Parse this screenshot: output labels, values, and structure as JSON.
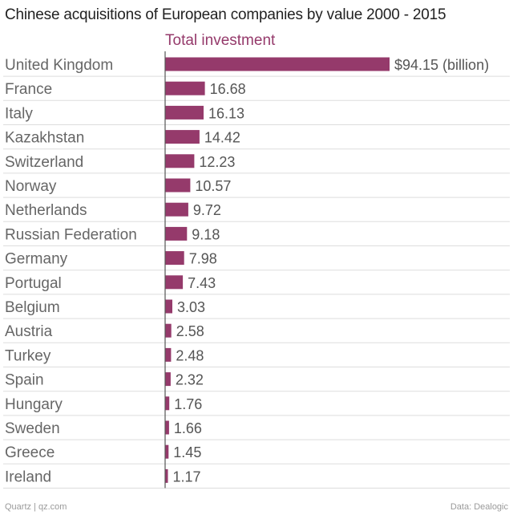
{
  "chart_data": {
    "type": "bar",
    "orientation": "horizontal",
    "title": "Chinese acquisitions of European companies by value 2000 - 2015",
    "series_name": "Total investment",
    "value_unit_suffix": " (billion)",
    "value_prefix": "$",
    "categories": [
      "United Kingdom",
      "France",
      "Italy",
      "Kazakhstan",
      "Switzerland",
      "Norway",
      "Netherlands",
      "Russian Federation",
      "Germany",
      "Portugal",
      "Belgium",
      "Austria",
      "Turkey",
      "Spain",
      "Hungary",
      "Sweden",
      "Greece",
      "Ireland"
    ],
    "values": [
      94.15,
      16.68,
      16.13,
      14.42,
      12.23,
      10.57,
      9.72,
      9.18,
      7.98,
      7.43,
      3.03,
      2.58,
      2.48,
      2.32,
      1.76,
      1.66,
      1.45,
      1.17
    ],
    "value_labels": [
      "$94.15 (billion)",
      "16.68",
      "16.13",
      "14.42",
      "12.23",
      "10.57",
      "9.72",
      "9.18",
      "7.98",
      "7.43",
      "3.03",
      "2.58",
      "2.48",
      "2.32",
      "1.76",
      "1.66",
      "1.45",
      "1.17"
    ],
    "xlim": [
      0,
      94.15
    ],
    "grid": true,
    "legend": "none"
  },
  "colors": {
    "bar": "#953a6b",
    "series_title": "#953a6b",
    "gridline": "#dddddd",
    "axis": "#555555"
  },
  "footer": {
    "source_left": "Quartz | qz.com",
    "source_right": "Data: Dealogic"
  }
}
